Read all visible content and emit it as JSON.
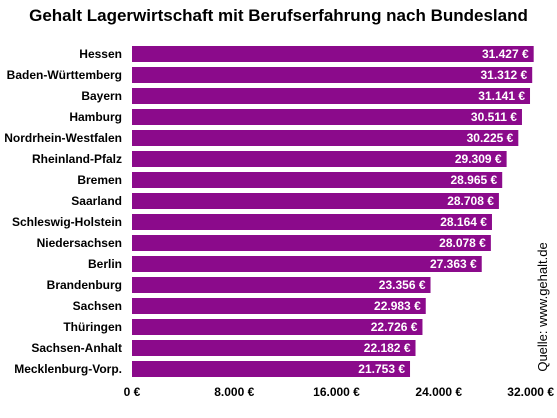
{
  "chart_data": {
    "type": "bar",
    "orientation": "horizontal",
    "title": "Gehalt Lagerwirtschaft mit Berufserfahrung nach Bundesland",
    "categories": [
      "Hessen",
      "Baden-Württemberg",
      "Bayern",
      "Hamburg",
      "Nordrhein-Westfalen",
      "Rheinland-Pfalz",
      "Bremen",
      "Saarland",
      "Schleswig-Holstein",
      "Niedersachsen",
      "Berlin",
      "Brandenburg",
      "Sachsen",
      "Thüringen",
      "Sachsen-Anhalt",
      "Mecklenburg-Vorp."
    ],
    "values": [
      31427,
      31312,
      31141,
      30511,
      30225,
      29309,
      28965,
      28708,
      28164,
      28078,
      27363,
      23356,
      22983,
      22726,
      22182,
      21753
    ],
    "value_labels": [
      "31.427 €",
      "31.312 €",
      "31.141 €",
      "30.511 €",
      "30.225 €",
      "29.309 €",
      "28.965 €",
      "28.708 €",
      "28.164 €",
      "28.078 €",
      "27.363 €",
      "23.356 €",
      "22.983 €",
      "22.726 €",
      "22.182 €",
      "21.753 €"
    ],
    "xlim": [
      0,
      32000
    ],
    "x_ticks": [
      0,
      8000,
      16000,
      24000,
      32000
    ],
    "x_tick_labels": [
      "0 €",
      "8.000 €",
      "16.000 €",
      "24.000 €",
      "32.000 €"
    ],
    "grid": false,
    "bar_color": "#8b0a8b",
    "source": "Quelle: www.gehalt.de"
  }
}
